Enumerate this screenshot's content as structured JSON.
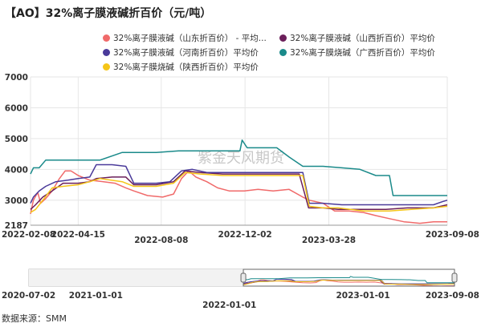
{
  "title": "【AO】32%离子膜液碱折百价（元/吨）",
  "source": "数据来源：SMM",
  "watermark": "紫金天风期货",
  "chart_data": {
    "type": "line",
    "unit": "元/吨",
    "ylim": [
      2187,
      7000
    ],
    "yticks": [
      2187,
      3000,
      4000,
      5000,
      6000,
      7000
    ],
    "x_start": "2022-02-08",
    "x_end": "2023-09-08",
    "x_tick_labels": [
      {
        "date": "2022-02-08",
        "label": "2022-02-08"
      },
      {
        "date": "2022-04-15",
        "label": "2022-04-15"
      },
      {
        "date": "2022-08-08",
        "label": "2022-08-08"
      },
      {
        "date": "2022-12-02",
        "label": "2022-12-02"
      },
      {
        "date": "2023-03-28",
        "label": "2023-03-28"
      },
      {
        "date": "2023-09-08",
        "label": "2023-09-08"
      }
    ],
    "grid": true,
    "legend_position": "top",
    "series": [
      {
        "name": "32%离子膜液碱（山东折百价） - 平均...",
        "color": "#f06a6a",
        "points": [
          [
            "2022-02-08",
            2550
          ],
          [
            "2022-02-12",
            3000
          ],
          [
            "2022-02-18",
            3250
          ],
          [
            "2022-02-22",
            2900
          ],
          [
            "2022-03-01",
            3050
          ],
          [
            "2022-03-10",
            3300
          ],
          [
            "2022-03-20",
            3700
          ],
          [
            "2022-03-28",
            3950
          ],
          [
            "2022-04-05",
            3950
          ],
          [
            "2022-04-15",
            3800
          ],
          [
            "2022-05-01",
            3650
          ],
          [
            "2022-05-20",
            3600
          ],
          [
            "2022-06-05",
            3550
          ],
          [
            "2022-06-20",
            3400
          ],
          [
            "2022-07-01",
            3300
          ],
          [
            "2022-07-20",
            3150
          ],
          [
            "2022-08-10",
            3100
          ],
          [
            "2022-08-25",
            3200
          ],
          [
            "2022-09-05",
            3700
          ],
          [
            "2022-09-15",
            3950
          ],
          [
            "2022-09-25",
            3750
          ],
          [
            "2022-10-10",
            3600
          ],
          [
            "2022-10-25",
            3400
          ],
          [
            "2022-11-10",
            3300
          ],
          [
            "2022-12-01",
            3300
          ],
          [
            "2022-12-20",
            3350
          ],
          [
            "2023-01-10",
            3300
          ],
          [
            "2023-02-01",
            3350
          ],
          [
            "2023-02-20",
            3100
          ],
          [
            "2023-03-01",
            3000
          ],
          [
            "2023-03-20",
            2900
          ],
          [
            "2023-04-05",
            2650
          ],
          [
            "2023-04-25",
            2650
          ],
          [
            "2023-05-15",
            2600
          ],
          [
            "2023-06-01",
            2500
          ],
          [
            "2023-06-20",
            2400
          ],
          [
            "2023-07-10",
            2300
          ],
          [
            "2023-08-01",
            2250
          ],
          [
            "2023-08-20",
            2300
          ],
          [
            "2023-09-08",
            2300
          ]
        ]
      },
      {
        "name": "32%离子膜液碱（山西折百价）平均价",
        "color": "#6b1f5a",
        "points": [
          [
            "2022-02-08",
            2700
          ],
          [
            "2022-02-15",
            2850
          ],
          [
            "2022-02-25",
            3100
          ],
          [
            "2022-03-10",
            3300
          ],
          [
            "2022-03-25",
            3550
          ],
          [
            "2022-04-15",
            3550
          ],
          [
            "2022-05-01",
            3600
          ],
          [
            "2022-05-10",
            3700
          ],
          [
            "2022-06-01",
            3750
          ],
          [
            "2022-06-20",
            3750
          ],
          [
            "2022-07-01",
            3500
          ],
          [
            "2022-08-01",
            3500
          ],
          [
            "2022-08-25",
            3600
          ],
          [
            "2022-09-10",
            3950
          ],
          [
            "2022-10-01",
            3900
          ],
          [
            "2022-11-01",
            3850
          ],
          [
            "2022-12-01",
            3850
          ],
          [
            "2023-01-01",
            3850
          ],
          [
            "2023-02-15",
            3850
          ],
          [
            "2023-02-28",
            2750
          ],
          [
            "2023-03-20",
            2750
          ],
          [
            "2023-04-10",
            2700
          ],
          [
            "2023-05-15",
            2700
          ],
          [
            "2023-06-15",
            2700
          ],
          [
            "2023-07-15",
            2750
          ],
          [
            "2023-08-20",
            2750
          ],
          [
            "2023-09-08",
            2850
          ]
        ]
      },
      {
        "name": "32%离子膜液碱（河南折百价）平均价",
        "color": "#4a3a9a",
        "points": [
          [
            "2022-02-08",
            2900
          ],
          [
            "2022-02-12",
            3100
          ],
          [
            "2022-02-20",
            3300
          ],
          [
            "2022-03-01",
            3450
          ],
          [
            "2022-03-15",
            3600
          ],
          [
            "2022-04-01",
            3650
          ],
          [
            "2022-04-15",
            3700
          ],
          [
            "2022-05-01",
            3750
          ],
          [
            "2022-05-10",
            4150
          ],
          [
            "2022-06-01",
            4150
          ],
          [
            "2022-06-20",
            4100
          ],
          [
            "2022-07-01",
            3550
          ],
          [
            "2022-08-01",
            3550
          ],
          [
            "2022-08-20",
            3600
          ],
          [
            "2022-09-05",
            3950
          ],
          [
            "2022-09-20",
            4000
          ],
          [
            "2022-10-10",
            3900
          ],
          [
            "2022-11-01",
            3900
          ],
          [
            "2022-12-01",
            3900
          ],
          [
            "2023-01-01",
            3900
          ],
          [
            "2023-02-20",
            3900
          ],
          [
            "2023-03-01",
            2900
          ],
          [
            "2023-03-20",
            2900
          ],
          [
            "2023-04-15",
            2850
          ],
          [
            "2023-05-20",
            2850
          ],
          [
            "2023-06-20",
            2850
          ],
          [
            "2023-07-20",
            2850
          ],
          [
            "2023-08-20",
            2850
          ],
          [
            "2023-09-01",
            2950
          ],
          [
            "2023-09-08",
            3000
          ]
        ]
      },
      {
        "name": "32%离子膜烧碱（广西折百价）平均价",
        "color": "#1a8a8a",
        "points": [
          [
            "2022-02-08",
            3850
          ],
          [
            "2022-02-12",
            4050
          ],
          [
            "2022-02-20",
            4050
          ],
          [
            "2022-03-01",
            4300
          ],
          [
            "2022-04-15",
            4300
          ],
          [
            "2022-05-15",
            4300
          ],
          [
            "2022-06-15",
            4550
          ],
          [
            "2022-08-01",
            4550
          ],
          [
            "2022-09-01",
            4600
          ],
          [
            "2022-10-01",
            4600
          ],
          [
            "2022-11-01",
            4600
          ],
          [
            "2022-11-25",
            4600
          ],
          [
            "2022-11-28",
            4950
          ],
          [
            "2022-12-05",
            4700
          ],
          [
            "2022-12-20",
            4700
          ],
          [
            "2023-01-15",
            4700
          ],
          [
            "2023-02-01",
            4400
          ],
          [
            "2023-02-20",
            4100
          ],
          [
            "2023-03-20",
            4100
          ],
          [
            "2023-04-15",
            4050
          ],
          [
            "2023-05-10",
            4000
          ],
          [
            "2023-06-01",
            3800
          ],
          [
            "2023-06-20",
            3800
          ],
          [
            "2023-06-25",
            3150
          ],
          [
            "2023-08-01",
            3150
          ],
          [
            "2023-09-08",
            3150
          ]
        ]
      },
      {
        "name": "32%离子膜烧碱（陕西折百价）平均价",
        "color": "#f5c518",
        "points": [
          [
            "2022-02-08",
            2600
          ],
          [
            "2022-02-15",
            2700
          ],
          [
            "2022-02-25",
            3000
          ],
          [
            "2022-03-10",
            3400
          ],
          [
            "2022-03-25",
            3450
          ],
          [
            "2022-04-15",
            3500
          ],
          [
            "2022-05-01",
            3600
          ],
          [
            "2022-05-15",
            3700
          ],
          [
            "2022-06-15",
            3600
          ],
          [
            "2022-07-01",
            3450
          ],
          [
            "2022-08-01",
            3450
          ],
          [
            "2022-08-25",
            3550
          ],
          [
            "2022-09-10",
            3900
          ],
          [
            "2022-10-01",
            3850
          ],
          [
            "2022-11-01",
            3800
          ],
          [
            "2022-12-01",
            3800
          ],
          [
            "2023-01-01",
            3800
          ],
          [
            "2023-02-20",
            3800
          ],
          [
            "2023-03-01",
            2800
          ],
          [
            "2023-03-20",
            2750
          ],
          [
            "2023-04-10",
            2750
          ],
          [
            "2023-05-15",
            2650
          ],
          [
            "2023-06-20",
            2650
          ],
          [
            "2023-07-20",
            2700
          ],
          [
            "2023-08-20",
            2750
          ],
          [
            "2023-09-08",
            2800
          ]
        ]
      }
    ],
    "navigator": {
      "x_start": "2020-07-02",
      "x_end": "2023-09-08",
      "tick_labels": [
        {
          "date": "2020-07-02",
          "label": "2020-07-02"
        },
        {
          "date": "2021-01-01",
          "label": "2021-01-01"
        },
        {
          "date": "2022-01-01",
          "label": "2022-01-01"
        },
        {
          "date": "2023-01-01",
          "label": "2023-01-01"
        },
        {
          "date": "2023-09-08",
          "label": "2023-09-08"
        }
      ],
      "selected_range": [
        "2022-02-08",
        "2023-09-08"
      ]
    }
  }
}
